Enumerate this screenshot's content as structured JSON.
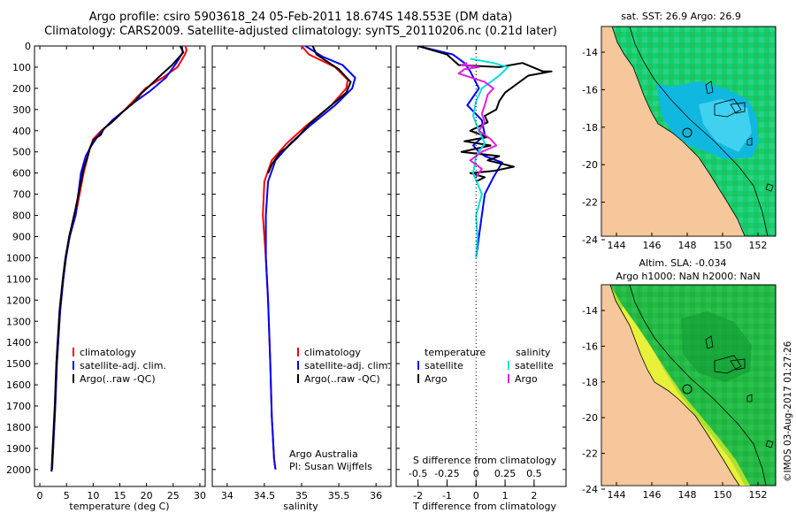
{
  "title_line1": "Argo profile: csiro 5903618_24 05-Feb-2011 18.674S 148.553E (DM data)",
  "title_line2": "Climatology: CARS2009. Satellite-adjusted climatology: synTS_20110206.nc (0.21d later)",
  "colors": {
    "climatology": "#ff0000",
    "satellite": "#0000ff",
    "argo": "#000000",
    "sat_salinity": "#00e0e0",
    "argo_salinity": "#e020e0",
    "land": "#f6c79b"
  },
  "chart_data": [
    {
      "type": "line",
      "id": "temperature",
      "xlabel": "temperature (deg C)",
      "ylabel": "",
      "xlim": [
        -1,
        31
      ],
      "ylim": [
        0,
        2080
      ],
      "xticks": [
        0,
        5,
        10,
        15,
        20,
        25,
        30
      ],
      "yticks": [
        0,
        100,
        200,
        300,
        400,
        500,
        600,
        700,
        800,
        900,
        1000,
        1100,
        1200,
        1300,
        1400,
        1500,
        1600,
        1700,
        1800,
        1900,
        2000
      ],
      "legend": [
        "climatology",
        "satellite-adj. clim.",
        "Argo(..raw -QC)"
      ],
      "series": [
        {
          "name": "climatology",
          "color": "#ff0000",
          "x": [
            27.3,
            27.5,
            27.2,
            25.8,
            23.0,
            19.8,
            16.0,
            13.5,
            11.5,
            10.0,
            9.2,
            8.2,
            6.7,
            5.6,
            4.9,
            4.4,
            3.8,
            3.2,
            2.9,
            2.6,
            2.4,
            2.3
          ],
          "y": [
            0,
            20,
            40,
            100,
            150,
            200,
            300,
            360,
            400,
            440,
            500,
            600,
            800,
            900,
            1000,
            1100,
            1250,
            1500,
            1700,
            1850,
            1950,
            2000
          ]
        },
        {
          "name": "satellite-adj. clim.",
          "color": "#0000ff",
          "x": [
            26.6,
            26.8,
            25.6,
            23.6,
            20.8,
            17.5,
            13.6,
            11.3,
            9.7,
            8.6,
            7.7,
            6.7,
            5.6,
            4.9,
            4.4,
            3.8,
            3.2,
            2.9,
            2.6,
            2.4,
            2.3
          ],
          "y": [
            0,
            30,
            80,
            150,
            210,
            270,
            350,
            410,
            470,
            520,
            600,
            800,
            900,
            1000,
            1100,
            1250,
            1500,
            1700,
            1850,
            1950,
            2000
          ]
        },
        {
          "name": "Argo(..raw -QC)",
          "color": "#000000",
          "x": [
            26.3,
            26.9,
            24.8,
            22.6,
            20.5,
            19.2,
            17.5,
            15.6,
            13.5,
            12.0,
            11.4,
            10.2,
            9.4,
            9.0,
            8.2,
            7.9,
            6.6,
            5.5,
            4.8,
            4.3,
            3.7,
            3.1,
            2.8,
            2.5,
            2.3,
            2.2
          ],
          "y": [
            0,
            30,
            90,
            140,
            190,
            220,
            270,
            310,
            360,
            390,
            420,
            440,
            480,
            520,
            580,
            620,
            780,
            900,
            1000,
            1100,
            1250,
            1500,
            1700,
            1850,
            1950,
            2010
          ]
        }
      ]
    },
    {
      "type": "line",
      "id": "salinity",
      "xlabel": "salinity",
      "ylabel": "",
      "xlim": [
        33.8,
        36.2
      ],
      "ylim": [
        0,
        2080
      ],
      "xticks": [
        34,
        34.5,
        35,
        35.5,
        36
      ],
      "legend": [
        "climatology",
        "satellite-adj. clim.",
        "Argo(..raw -QC)"
      ],
      "annotation": [
        "Argo Australia",
        "PI: Susan Wijffels"
      ],
      "series": [
        {
          "name": "climatology",
          "color": "#ff0000",
          "x": [
            35.0,
            35.1,
            35.45,
            35.62,
            35.6,
            35.4,
            35.05,
            34.8,
            34.6,
            34.5,
            34.48,
            34.5,
            34.52,
            34.55,
            34.58,
            34.6,
            34.63,
            34.65
          ],
          "y": [
            0,
            40,
            100,
            160,
            200,
            280,
            380,
            460,
            540,
            640,
            800,
            900,
            1000,
            1200,
            1500,
            1750,
            1950,
            2000
          ]
        },
        {
          "name": "satellite-adj. clim.",
          "color": "#0000ff",
          "x": [
            35.05,
            35.28,
            35.55,
            35.72,
            35.68,
            35.45,
            35.1,
            34.85,
            34.65,
            34.55,
            34.52,
            34.52,
            34.55,
            34.58,
            34.6,
            34.63,
            34.65
          ],
          "y": [
            0,
            50,
            90,
            150,
            200,
            280,
            380,
            460,
            540,
            640,
            800,
            1000,
            1200,
            1500,
            1750,
            1950,
            2000
          ]
        },
        {
          "name": "Argo(..raw -QC)",
          "color": "#000000",
          "x": [
            35.15,
            35.2,
            35.5,
            35.66,
            35.6,
            35.4,
            35.3,
            35.1,
            34.95,
            34.8,
            34.72,
            34.6,
            34.55
          ],
          "y": [
            0,
            40,
            110,
            170,
            220,
            280,
            310,
            370,
            430,
            480,
            500,
            560,
            600
          ]
        }
      ]
    },
    {
      "type": "line",
      "id": "difference",
      "xlabel_top": "S difference from climatology",
      "xlabel": "T difference from climatology",
      "xlim": [
        -2.75,
        3.1
      ],
      "ylim": [
        0,
        2080
      ],
      "xticks_T": [
        -2,
        -1,
        0,
        1,
        2
      ],
      "xticks_S": [
        "-0.5",
        "-0.25",
        "0",
        "0.25",
        "0.5"
      ],
      "legend_temperature": [
        "temperature",
        "satellite",
        "Argo"
      ],
      "legend_salinity": [
        "salinity",
        "satellite",
        "Argo"
      ],
      "series": [
        {
          "name": "temperature satellite",
          "color": "#0000ff",
          "x": [
            -2.0,
            -0.8,
            -0.4,
            -0.2,
            0.1,
            -0.3,
            0.2,
            0.3,
            -0.1,
            0.1,
            0.3,
            0.9,
            0.6,
            0.3,
            0.2,
            0.1,
            0.05,
            0.0
          ],
          "y": [
            0,
            40,
            80,
            120,
            200,
            280,
            350,
            420,
            470,
            500,
            520,
            550,
            620,
            700,
            800,
            900,
            950,
            1000
          ]
        },
        {
          "name": "temperature Argo",
          "color": "#000000",
          "x": [
            -2.0,
            -1.0,
            -0.6,
            0.8,
            1.6,
            2.3,
            2.6,
            1.8,
            1.4,
            1.0,
            0.8,
            0.7,
            0.3,
            0.4,
            -0.2,
            0.4,
            -0.4,
            0.5,
            -0.5,
            0.8,
            0.4,
            1.3,
            0.6,
            -0.2,
            0.3,
            0.0
          ],
          "y": [
            0,
            40,
            90,
            100,
            80,
            120,
            120,
            140,
            180,
            220,
            260,
            300,
            330,
            360,
            400,
            430,
            450,
            470,
            500,
            520,
            540,
            570,
            590,
            600,
            620,
            640
          ]
        }
      ]
    }
  ],
  "maps": {
    "sst": {
      "title": "sat. SST: 26.9 Argo: 26.9",
      "lon_ticks": [
        "144",
        "146",
        "148",
        "150",
        "152"
      ],
      "lat_ticks": [
        "-14",
        "-16",
        "-18",
        "-20",
        "-22",
        "-24"
      ]
    },
    "sla": {
      "title1": "Altim. SLA: -0.034",
      "title2": "Argo h1000: NaN h2000: NaN",
      "lon_ticks": [
        "144",
        "146",
        "148",
        "150",
        "152"
      ],
      "lat_ticks": [
        "-14",
        "-16",
        "-18",
        "-20",
        "-22",
        "-24"
      ]
    }
  },
  "credit": "©IMOS 03-Aug-2017 01:27:26"
}
